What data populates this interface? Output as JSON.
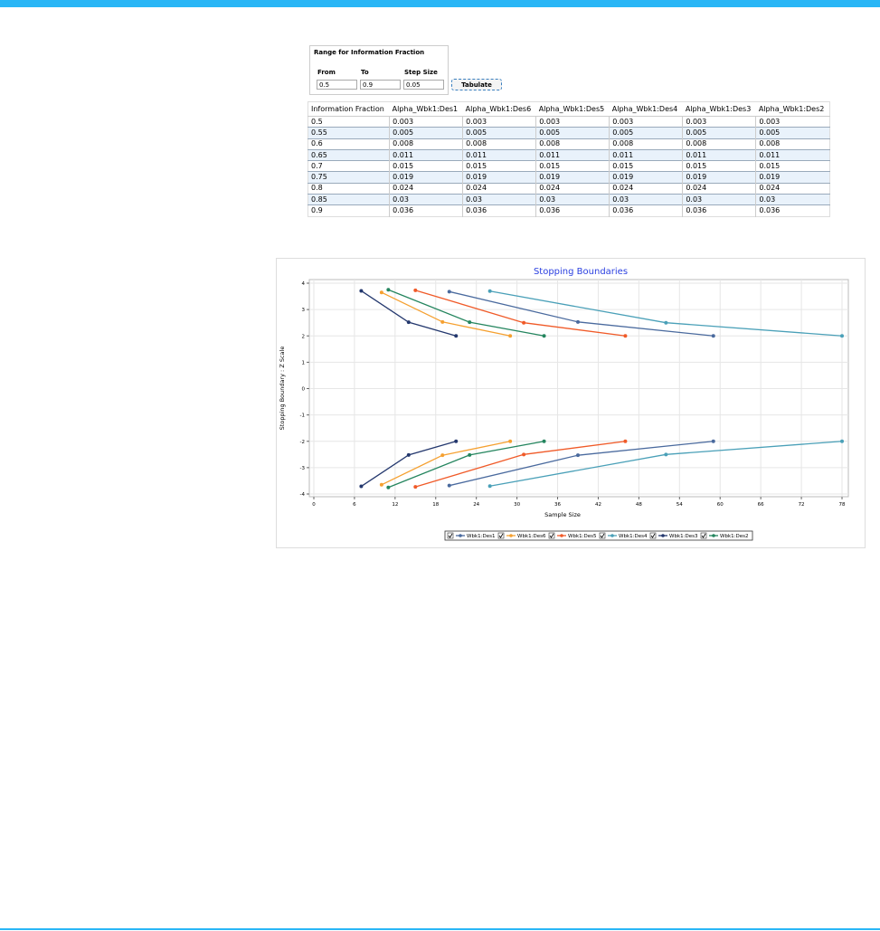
{
  "form": {
    "legend": "Range for Information Fraction",
    "from_label": "From",
    "to_label": "To",
    "step_label": "Step Size",
    "from": "0.5",
    "to": "0.9",
    "step": "0.05",
    "button": "Tabulate"
  },
  "table": {
    "header": [
      "Information Fraction",
      "Alpha_Wbk1:Des1",
      "Alpha_Wbk1:Des6",
      "Alpha_Wbk1:Des5",
      "Alpha_Wbk1:Des4",
      "Alpha_Wbk1:Des3",
      "Alpha_Wbk1:Des2"
    ],
    "rows": [
      [
        "0.5",
        "0.003",
        "0.003",
        "0.003",
        "0.003",
        "0.003",
        "0.003"
      ],
      [
        "0.55",
        "0.005",
        "0.005",
        "0.005",
        "0.005",
        "0.005",
        "0.005"
      ],
      [
        "0.6",
        "0.008",
        "0.008",
        "0.008",
        "0.008",
        "0.008",
        "0.008"
      ],
      [
        "0.65",
        "0.011",
        "0.011",
        "0.011",
        "0.011",
        "0.011",
        "0.011"
      ],
      [
        "0.7",
        "0.015",
        "0.015",
        "0.015",
        "0.015",
        "0.015",
        "0.015"
      ],
      [
        "0.75",
        "0.019",
        "0.019",
        "0.019",
        "0.019",
        "0.019",
        "0.019"
      ],
      [
        "0.8",
        "0.024",
        "0.024",
        "0.024",
        "0.024",
        "0.024",
        "0.024"
      ],
      [
        "0.85",
        "0.03",
        "0.03",
        "0.03",
        "0.03",
        "0.03",
        "0.03"
      ],
      [
        "0.9",
        "0.036",
        "0.036",
        "0.036",
        "0.036",
        "0.036",
        "0.036"
      ]
    ]
  },
  "chart_data": {
    "type": "line",
    "title": "Stopping Boundaries",
    "xlabel": "Sample Size",
    "ylabel": "Stopping Boundary : Z Scale",
    "xlim": [
      0,
      78
    ],
    "xticks": [
      0,
      6,
      12,
      18,
      24,
      30,
      36,
      42,
      48,
      54,
      60,
      66,
      72,
      78
    ],
    "ylim": [
      -4,
      4
    ],
    "yticks": [
      -4,
      -3,
      -2,
      -1,
      0,
      1,
      2,
      3,
      4
    ],
    "grid": true,
    "series": [
      {
        "name": "Wbk1:Des1",
        "color": "#4a6a9e",
        "x": [
          20,
          39,
          59
        ],
        "upper": [
          3.68,
          2.53,
          2.0
        ],
        "lower": [
          -3.68,
          -2.53,
          -2.0
        ]
      },
      {
        "name": "Wbk1:Des6",
        "color": "#f5a030",
        "x": [
          10,
          19,
          29
        ],
        "upper": [
          3.65,
          2.53,
          2.0
        ],
        "lower": [
          -3.65,
          -2.53,
          -2.0
        ]
      },
      {
        "name": "Wbk1:Des5",
        "color": "#f05a28",
        "x": [
          15,
          31,
          46
        ],
        "upper": [
          3.73,
          2.5,
          2.0
        ],
        "lower": [
          -3.73,
          -2.5,
          -2.0
        ]
      },
      {
        "name": "Wbk1:Des4",
        "color": "#4aa0b8",
        "x": [
          26,
          52,
          78
        ],
        "upper": [
          3.7,
          2.5,
          2.0
        ],
        "lower": [
          -3.7,
          -2.5,
          -2.0
        ]
      },
      {
        "name": "Wbk1:Des3",
        "color": "#24386e",
        "x": [
          7,
          14,
          21
        ],
        "upper": [
          3.71,
          2.52,
          2.0
        ],
        "lower": [
          -3.71,
          -2.52,
          -2.0
        ]
      },
      {
        "name": "Wbk1:Des2",
        "color": "#24855e",
        "x": [
          11,
          23,
          34
        ],
        "upper": [
          3.75,
          2.52,
          2.0
        ],
        "lower": [
          -3.75,
          -2.52,
          -2.0
        ]
      }
    ]
  }
}
